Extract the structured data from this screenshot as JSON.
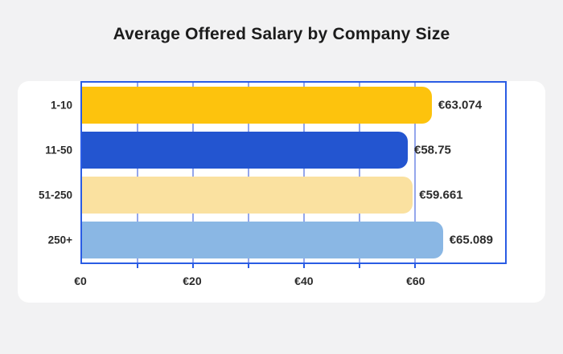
{
  "page": {
    "background_color": "#f2f2f3",
    "title": "Average Offered Salary by Company Size"
  },
  "chart_data": {
    "type": "bar",
    "orientation": "horizontal",
    "title": "Average Offered Salary by Company Size",
    "categories": [
      "1-10",
      "11-50",
      "51-250",
      "250+"
    ],
    "values": [
      63.074,
      58.75,
      59.661,
      65.089
    ],
    "value_labels": [
      "€63.074",
      "€58.75",
      "€59.661",
      "€65.089"
    ],
    "bar_colors": [
      "#fdc30d",
      "#2355d0",
      "#fae1a0",
      "#8ab7e4"
    ],
    "x_ticks": [
      0,
      20,
      40,
      60
    ],
    "x_tick_labels": [
      "€0",
      "€20",
      "€40",
      "€60"
    ],
    "gridlines": [
      10,
      20,
      30,
      40,
      50,
      60
    ],
    "xlim": [
      0,
      76.3
    ],
    "grid": true,
    "legend": false,
    "colors": {
      "plot_border": "#2a5ce4",
      "gridline": "#94a6ec",
      "card_background": "#ffffff",
      "text": "#2b2b2b",
      "title_text": "#1c1c1c"
    }
  }
}
